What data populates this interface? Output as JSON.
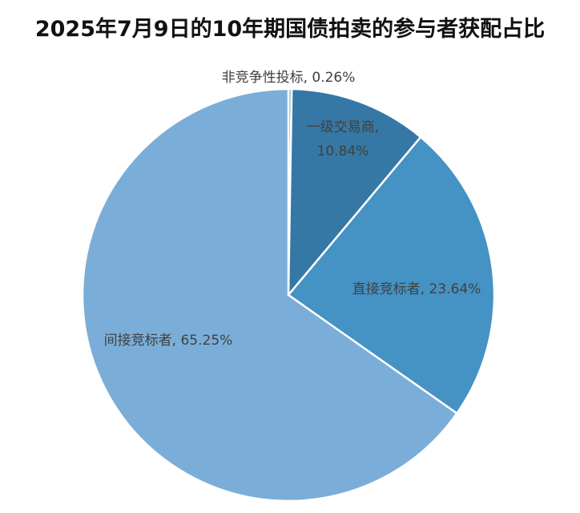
{
  "chart_data": {
    "type": "pie",
    "title": "2025年7月9日的10年期国债拍卖的参与者获配占比",
    "categories": [
      "非竞争性投标",
      "一级交易商",
      "直接竞标者",
      "间接竞标者"
    ],
    "values": [
      0.26,
      10.84,
      23.64,
      65.25
    ],
    "colors": [
      "#7aaed8",
      "#3578a5",
      "#4592c4",
      "#7aaed8"
    ],
    "start_angle_deg": 0,
    "direction": "clockwise",
    "legend": "none",
    "data_labels": [
      {
        "lines": [
          "非竞争性投标, 0.26%"
        ]
      },
      {
        "lines": [
          "一级交易商,",
          "10.84%"
        ]
      },
      {
        "lines": [
          "直接竞标者, 23.64%"
        ]
      },
      {
        "lines": [
          "间接竞标者, 65.25%"
        ]
      }
    ]
  }
}
